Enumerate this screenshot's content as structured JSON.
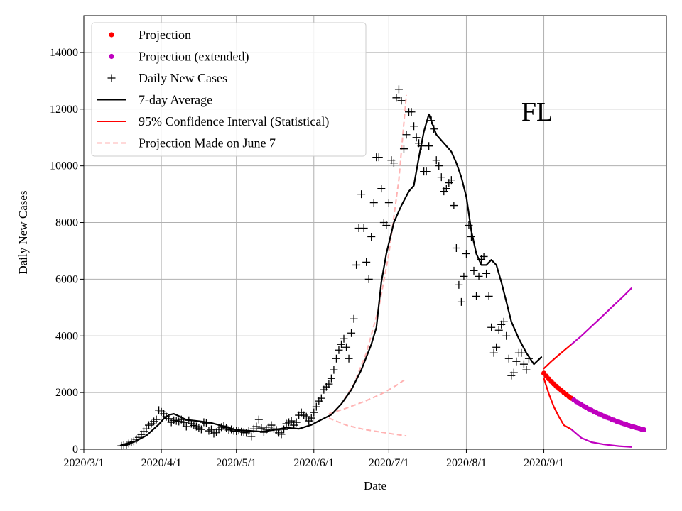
{
  "chart_data": {
    "type": "line",
    "state_label": "FL",
    "xlabel": "Date",
    "ylabel": "Daily New Cases",
    "grid": true,
    "legend_position": "top-left",
    "x_axis": {
      "type": "date",
      "xlim": [
        "2020-03-01",
        "2020-10-20"
      ],
      "ticks": [
        {
          "date": "2020-03-01",
          "label": "2020/3/1"
        },
        {
          "date": "2020-04-01",
          "label": "2020/4/1"
        },
        {
          "date": "2020-05-01",
          "label": "2020/5/1"
        },
        {
          "date": "2020-06-01",
          "label": "2020/6/1"
        },
        {
          "date": "2020-07-01",
          "label": "2020/7/1"
        },
        {
          "date": "2020-08-01",
          "label": "2020/8/1"
        },
        {
          "date": "2020-09-01",
          "label": "2020/9/1"
        }
      ]
    },
    "y_axis": {
      "ylim": [
        0,
        15300
      ],
      "ticks": [
        {
          "value": 0,
          "label": "0"
        },
        {
          "value": 2000,
          "label": "2000"
        },
        {
          "value": 4000,
          "label": "4000"
        },
        {
          "value": 6000,
          "label": "6000"
        },
        {
          "value": 8000,
          "label": "8000"
        },
        {
          "value": 10000,
          "label": "10000"
        },
        {
          "value": 12000,
          "label": "12000"
        },
        {
          "value": 14000,
          "label": "14000"
        }
      ]
    },
    "legend": [
      {
        "label": "Projection",
        "style": "dot",
        "color": "#ff0000"
      },
      {
        "label": "Projection (extended)",
        "style": "dot",
        "color": "#bf00bf"
      },
      {
        "label": "Daily New Cases",
        "style": "plus",
        "color": "#000000"
      },
      {
        "label": "7-day Average",
        "style": "line",
        "color": "#000000"
      },
      {
        "label": "95% Confidence Interval (Statistical)",
        "style": "line",
        "color": "#ff0000"
      },
      {
        "label": "Projection Made on June 7",
        "style": "dashed",
        "color": "#ffb3b3"
      }
    ],
    "series": [
      {
        "name": "Daily New Cases",
        "style": "plus",
        "color": "#000000",
        "start_date": "2020-03-16",
        "values": [
          120,
          140,
          160,
          200,
          250,
          280,
          350,
          420,
          520,
          630,
          720,
          850,
          900,
          980,
          1050,
          1380,
          1320,
          1250,
          1150,
          1080,
          950,
          1020,
          1000,
          980,
          1050,
          950,
          800,
          1020,
          900,
          840,
          800,
          750,
          700,
          950,
          920,
          650,
          700,
          550,
          600,
          700,
          780,
          820,
          750,
          680,
          700,
          650,
          640,
          660,
          620,
          600,
          580,
          650,
          450,
          720,
          800,
          1050,
          750,
          600,
          700,
          780,
          850,
          720,
          680,
          580,
          530,
          700,
          900,
          950,
          1000,
          850,
          950,
          1200,
          1300,
          1200,
          1150,
          1000,
          1100,
          1300,
          1500,
          1700,
          1800,
          2100,
          2200,
          2300,
          2500,
          2800,
          3200,
          3500,
          3700,
          3900,
          3600,
          3200,
          4100,
          4600,
          6500,
          7800,
          9000,
          7800,
          6600,
          6000,
          7500,
          8700,
          10300,
          10300,
          9200,
          8000,
          7900,
          8700,
          10200,
          10100,
          12400,
          12700,
          12300,
          10600,
          11100,
          11900,
          11900,
          11400,
          11000,
          10800,
          10700,
          9800,
          9800,
          10700,
          11600,
          11300,
          10200,
          10000,
          9600,
          9100,
          9200,
          9400,
          9500,
          8600,
          7100,
          5800,
          5200,
          6100,
          6900,
          7900,
          7500,
          6300,
          5400,
          6100,
          6700,
          6800,
          6200,
          5400,
          4300,
          3400,
          3600,
          4200,
          4400,
          4500,
          4000,
          3200,
          2600,
          2700,
          3100,
          3400,
          3400,
          3000,
          2800,
          3200
        ]
      },
      {
        "name": "7-day Average",
        "style": "line",
        "color": "#000000",
        "points": [
          [
            "2020-03-16",
            150
          ],
          [
            "2020-03-21",
            260
          ],
          [
            "2020-03-26",
            480
          ],
          [
            "2020-03-31",
            880
          ],
          [
            "2020-04-02",
            1080
          ],
          [
            "2020-04-04",
            1210
          ],
          [
            "2020-04-06",
            1250
          ],
          [
            "2020-04-08",
            1170
          ],
          [
            "2020-04-11",
            1040
          ],
          [
            "2020-04-16",
            990
          ],
          [
            "2020-04-21",
            930
          ],
          [
            "2020-04-26",
            810
          ],
          [
            "2020-05-01",
            680
          ],
          [
            "2020-05-06",
            650
          ],
          [
            "2020-05-11",
            620
          ],
          [
            "2020-05-16",
            680
          ],
          [
            "2020-05-21",
            760
          ],
          [
            "2020-05-26",
            720
          ],
          [
            "2020-05-31",
            860
          ],
          [
            "2020-06-03",
            1000
          ],
          [
            "2020-06-08",
            1220
          ],
          [
            "2020-06-12",
            1600
          ],
          [
            "2020-06-16",
            2100
          ],
          [
            "2020-06-20",
            2800
          ],
          [
            "2020-06-24",
            3700
          ],
          [
            "2020-06-26",
            4300
          ],
          [
            "2020-06-28",
            5900
          ],
          [
            "2020-06-30",
            6900
          ],
          [
            "2020-07-03",
            8000
          ],
          [
            "2020-07-06",
            8600
          ],
          [
            "2020-07-09",
            9100
          ],
          [
            "2020-07-11",
            9300
          ],
          [
            "2020-07-13",
            10300
          ],
          [
            "2020-07-15",
            11200
          ],
          [
            "2020-07-17",
            11820
          ],
          [
            "2020-07-20",
            11100
          ],
          [
            "2020-07-23",
            10800
          ],
          [
            "2020-07-26",
            10500
          ],
          [
            "2020-07-28",
            10100
          ],
          [
            "2020-07-30",
            9600
          ],
          [
            "2020-08-01",
            8900
          ],
          [
            "2020-08-03",
            7700
          ],
          [
            "2020-08-05",
            6900
          ],
          [
            "2020-08-07",
            6500
          ],
          [
            "2020-08-09",
            6500
          ],
          [
            "2020-08-11",
            6680
          ],
          [
            "2020-08-13",
            6500
          ],
          [
            "2020-08-15",
            5900
          ],
          [
            "2020-08-17",
            5200
          ],
          [
            "2020-08-19",
            4500
          ],
          [
            "2020-08-22",
            3900
          ],
          [
            "2020-08-25",
            3400
          ],
          [
            "2020-08-28",
            3000
          ],
          [
            "2020-08-31",
            3250
          ]
        ]
      },
      {
        "name": "Projection",
        "style": "dot",
        "color": "#ff0000",
        "points": [
          [
            "2020-09-01",
            2680
          ],
          [
            "2020-09-02",
            2580
          ],
          [
            "2020-09-03",
            2480
          ],
          [
            "2020-09-04",
            2390
          ],
          [
            "2020-09-05",
            2300
          ],
          [
            "2020-09-06",
            2220
          ],
          [
            "2020-09-07",
            2140
          ],
          [
            "2020-09-08",
            2070
          ],
          [
            "2020-09-09",
            2000
          ],
          [
            "2020-09-10",
            1930
          ],
          [
            "2020-09-11",
            1860
          ],
          [
            "2020-09-12",
            1800
          ]
        ]
      },
      {
        "name": "Projection (extended)",
        "style": "dot",
        "color": "#bf00bf",
        "points": [
          [
            "2020-09-13",
            1740
          ],
          [
            "2020-09-14",
            1680
          ],
          [
            "2020-09-15",
            1620
          ],
          [
            "2020-09-16",
            1570
          ],
          [
            "2020-09-17",
            1520
          ],
          [
            "2020-09-18",
            1470
          ],
          [
            "2020-09-19",
            1420
          ],
          [
            "2020-09-20",
            1380
          ],
          [
            "2020-09-21",
            1330
          ],
          [
            "2020-09-22",
            1290
          ],
          [
            "2020-09-23",
            1250
          ],
          [
            "2020-09-24",
            1210
          ],
          [
            "2020-09-25",
            1170
          ],
          [
            "2020-09-26",
            1130
          ],
          [
            "2020-09-27",
            1100
          ],
          [
            "2020-09-28",
            1060
          ],
          [
            "2020-09-29",
            1030
          ],
          [
            "2020-09-30",
            990
          ],
          [
            "2020-10-01",
            960
          ],
          [
            "2020-10-02",
            930
          ],
          [
            "2020-10-03",
            900
          ],
          [
            "2020-10-04",
            870
          ],
          [
            "2020-10-05",
            840
          ],
          [
            "2020-10-06",
            810
          ],
          [
            "2020-10-07",
            790
          ],
          [
            "2020-10-08",
            760
          ],
          [
            "2020-10-09",
            740
          ],
          [
            "2020-10-10",
            710
          ],
          [
            "2020-10-11",
            690
          ]
        ]
      },
      {
        "name": "95% Confidence Interval upper",
        "style": "line",
        "color": "#ff0000",
        "points": [
          [
            "2020-09-01",
            2850
          ],
          [
            "2020-09-04",
            3100
          ],
          [
            "2020-09-07",
            3330
          ],
          [
            "2020-09-10",
            3550
          ],
          [
            "2020-09-12",
            3700
          ]
        ]
      },
      {
        "name": "95% Confidence Interval upper (extended)",
        "style": "line",
        "color": "#bf00bf",
        "points": [
          [
            "2020-09-12",
            3700
          ],
          [
            "2020-09-16",
            4000
          ],
          [
            "2020-09-20",
            4330
          ],
          [
            "2020-09-24",
            4660
          ],
          [
            "2020-09-28",
            5000
          ],
          [
            "2020-10-02",
            5330
          ],
          [
            "2020-10-06",
            5680
          ]
        ]
      },
      {
        "name": "95% Confidence Interval lower",
        "style": "line",
        "color": "#ff0000",
        "points": [
          [
            "2020-09-01",
            2500
          ],
          [
            "2020-09-03",
            1950
          ],
          [
            "2020-09-05",
            1500
          ],
          [
            "2020-09-07",
            1150
          ],
          [
            "2020-09-09",
            850
          ],
          [
            "2020-09-12",
            700
          ]
        ]
      },
      {
        "name": "95% Confidence Interval lower (extended)",
        "style": "line",
        "color": "#bf00bf",
        "points": [
          [
            "2020-09-12",
            700
          ],
          [
            "2020-09-16",
            400
          ],
          [
            "2020-09-20",
            250
          ],
          [
            "2020-09-25",
            170
          ],
          [
            "2020-10-01",
            110
          ],
          [
            "2020-10-06",
            80
          ]
        ]
      },
      {
        "name": "Projection Made on June 7 (central)",
        "style": "dashed",
        "color": "#ffb3b3",
        "points": [
          [
            "2020-06-07",
            1150
          ],
          [
            "2020-06-12",
            1600
          ],
          [
            "2020-06-17",
            2300
          ],
          [
            "2020-06-22",
            3400
          ],
          [
            "2020-06-27",
            5000
          ],
          [
            "2020-07-01",
            6900
          ],
          [
            "2020-07-05",
            9500
          ],
          [
            "2020-07-08",
            12500
          ]
        ]
      },
      {
        "name": "Projection Made on June 7 (upper)",
        "style": "dashed",
        "color": "#ffb3b3",
        "points": [
          [
            "2020-06-07",
            1250
          ],
          [
            "2020-06-14",
            1450
          ],
          [
            "2020-06-21",
            1680
          ],
          [
            "2020-06-28",
            1950
          ],
          [
            "2020-07-04",
            2250
          ],
          [
            "2020-07-08",
            2500
          ]
        ]
      },
      {
        "name": "Projection Made on June 7 (lower)",
        "style": "dashed",
        "color": "#ffb3b3",
        "points": [
          [
            "2020-06-07",
            1100
          ],
          [
            "2020-06-14",
            850
          ],
          [
            "2020-06-21",
            700
          ],
          [
            "2020-06-28",
            600
          ],
          [
            "2020-07-04",
            520
          ],
          [
            "2020-07-08",
            470
          ]
        ]
      }
    ]
  }
}
